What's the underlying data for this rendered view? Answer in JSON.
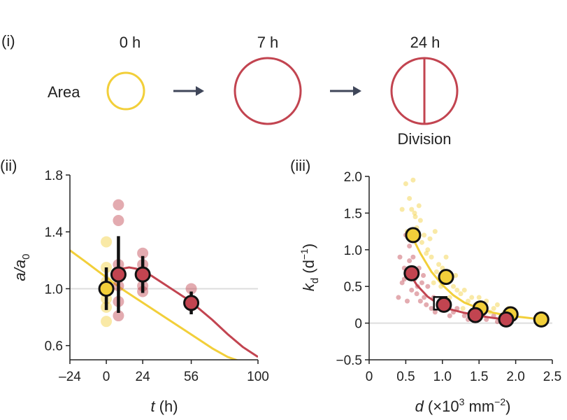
{
  "colors": {
    "yellow": "#F2CF3A",
    "red": "#C24450",
    "dark": "#111111",
    "arrow": "#3F4659",
    "grid": "#DDDDDD"
  },
  "panel_i": {
    "label": "(i)",
    "row_label": "Area",
    "times": [
      "0 h",
      "7 h",
      "24 h"
    ],
    "division_label": "Division"
  },
  "chart_data": [
    {
      "id": "ii",
      "panel_label": "(ii)",
      "type": "scatter",
      "xlabel_var": "t",
      "xlabel_unit": " (h)",
      "ylabel_var": "a/a",
      "ylabel_sub": "0",
      "xlim": [
        -24,
        100
      ],
      "ylim": [
        0.5,
        1.8
      ],
      "xticks": [
        -24,
        0,
        24,
        56,
        100
      ],
      "xtick_labels": [
        "–24",
        "0",
        "24",
        "56",
        "100"
      ],
      "yticks": [
        0.6,
        1.0,
        1.4,
        1.8
      ],
      "ytick_labels": [
        "0.6",
        "1.0",
        "1.4",
        "1.8"
      ],
      "reference_line": 1.0,
      "series": [
        {
          "name": "yellow-fit",
          "kind": "line",
          "color": "yellow",
          "x": [
            -24,
            -15,
            -5,
            0,
            5,
            10,
            20,
            30,
            40,
            50,
            60,
            70,
            80,
            88
          ],
          "y": [
            1.27,
            1.2,
            1.12,
            1.08,
            1.04,
            1.0,
            0.93,
            0.86,
            0.79,
            0.72,
            0.65,
            0.58,
            0.52,
            0.49
          ]
        },
        {
          "name": "red-fit",
          "kind": "line",
          "color": "red",
          "x": [
            7,
            10,
            15,
            20,
            24,
            30,
            40,
            50,
            56,
            60,
            70,
            80,
            90,
            100
          ],
          "y": [
            1.12,
            1.14,
            1.15,
            1.14,
            1.12,
            1.09,
            1.02,
            0.95,
            0.91,
            0.87,
            0.78,
            0.68,
            0.59,
            0.52
          ]
        },
        {
          "name": "yellow-raw",
          "kind": "raw",
          "color": "yellow",
          "x": [
            0,
            0,
            0,
            0,
            0,
            0
          ],
          "y": [
            1.33,
            1.15,
            1.05,
            0.93,
            0.87,
            0.77
          ]
        },
        {
          "name": "red-raw",
          "kind": "raw",
          "color": "red",
          "x": [
            8,
            8,
            8,
            8,
            8,
            8,
            24,
            24,
            24,
            24,
            56,
            56
          ],
          "y": [
            1.59,
            1.48,
            1.17,
            1.02,
            0.91,
            0.81,
            1.25,
            1.17,
            1.02,
            0.98,
            1.0,
            0.88
          ]
        },
        {
          "name": "yellow-mean",
          "kind": "mean",
          "color": "yellow",
          "x": [
            0
          ],
          "y": [
            1.0
          ],
          "err": [
            0.15
          ]
        },
        {
          "name": "red-mean",
          "kind": "mean",
          "color": "red",
          "x": [
            8,
            24,
            56
          ],
          "y": [
            1.1,
            1.1,
            0.9
          ],
          "err": [
            0.27,
            0.13,
            0.08
          ]
        }
      ]
    },
    {
      "id": "iii",
      "panel_label": "(iii)",
      "type": "scatter",
      "xlabel_var": "d",
      "xlabel_unit": " (×10",
      "xlabel_exp": "3",
      "xlabel_unit2": " mm",
      "xlabel_exp2": "−2",
      "xlabel_close": ")",
      "ylabel_var": "k",
      "ylabel_sub": "d",
      "ylabel_unit": " (d",
      "ylabel_exp": "−1",
      "ylabel_close": ")",
      "xlim": [
        0,
        2.5
      ],
      "ylim": [
        -0.5,
        2.0
      ],
      "xticks": [
        0,
        0.5,
        1.0,
        1.5,
        2.0,
        2.5
      ],
      "xtick_labels": [
        "0",
        "0.5",
        "1.0",
        "1.5",
        "2.0",
        "2.5"
      ],
      "yticks": [
        -0.5,
        0,
        0.5,
        1.0,
        1.5,
        2.0
      ],
      "ytick_labels": [
        "−0.5",
        "0",
        "0.5",
        "1.0",
        "1.5",
        "2.0"
      ],
      "reference_line": 0,
      "series": [
        {
          "name": "yellow-fit",
          "kind": "line",
          "color": "yellow",
          "x": [
            0.55,
            0.7,
            0.85,
            1.0,
            1.15,
            1.3,
            1.5,
            1.7,
            1.9,
            2.1,
            2.35
          ],
          "y": [
            1.25,
            0.95,
            0.7,
            0.52,
            0.38,
            0.28,
            0.2,
            0.14,
            0.1,
            0.08,
            0.05
          ]
        },
        {
          "name": "red-fit",
          "kind": "line",
          "color": "red",
          "x": [
            0.55,
            0.65,
            0.8,
            0.95,
            1.1,
            1.3,
            1.5,
            1.7,
            1.87
          ],
          "y": [
            0.68,
            0.52,
            0.36,
            0.26,
            0.19,
            0.14,
            0.1,
            0.07,
            0.05
          ]
        },
        {
          "name": "yellow-cloud",
          "kind": "cloud",
          "color": "yellow",
          "x": [
            0.45,
            0.5,
            0.55,
            0.6,
            0.62,
            0.65,
            0.7,
            0.72,
            0.75,
            0.8,
            0.85,
            0.9,
            0.92,
            0.95,
            1.0,
            1.05,
            1.1,
            1.1,
            1.15,
            1.2,
            1.25,
            1.3,
            1.35,
            1.4,
            1.45,
            1.5,
            1.55,
            1.6,
            1.65,
            1.7,
            1.75,
            1.8,
            1.85,
            1.9,
            1.95,
            2.0,
            0.58,
            0.68,
            0.78,
            0.88,
            0.98,
            1.08,
            1.18,
            1.28,
            0.52,
            0.63,
            0.83,
            1.02
          ],
          "y": [
            1.55,
            1.9,
            1.7,
            1.95,
            1.5,
            1.3,
            1.4,
            1.1,
            1.2,
            1.0,
            0.9,
            1.25,
            0.7,
            0.8,
            0.75,
            0.9,
            0.6,
            0.35,
            0.5,
            0.45,
            0.4,
            0.45,
            0.3,
            0.35,
            0.25,
            0.35,
            0.2,
            0.3,
            0.15,
            0.2,
            0.25,
            0.1,
            0.15,
            0.2,
            0.1,
            0.15,
            1.55,
            1.6,
            0.95,
            0.55,
            0.5,
            0.3,
            0.65,
            0.2,
            1.25,
            1.45,
            1.15,
            0.55
          ]
        },
        {
          "name": "red-cloud",
          "kind": "cloud",
          "color": "red",
          "x": [
            0.4,
            0.42,
            0.45,
            0.48,
            0.5,
            0.52,
            0.55,
            0.58,
            0.6,
            0.62,
            0.65,
            0.68,
            0.7,
            0.72,
            0.75,
            0.78,
            0.8,
            0.85,
            0.88,
            0.9,
            0.95,
            1.0,
            1.05,
            1.1,
            1.15,
            1.2,
            1.3,
            1.35,
            1.4,
            1.5,
            1.55,
            1.6,
            1.7,
            1.75,
            1.8,
            1.9,
            0.48,
            0.55,
            0.66,
            0.74
          ],
          "y": [
            0.35,
            0.9,
            0.55,
            0.6,
            1.2,
            0.3,
            0.85,
            0.45,
            0.9,
            0.6,
            0.4,
            0.75,
            0.3,
            0.55,
            0.35,
            0.25,
            0.5,
            0.2,
            0.35,
            0.15,
            0.3,
            0.2,
            0.25,
            0.1,
            0.15,
            0.2,
            0.1,
            0.05,
            0.15,
            0.08,
            0.12,
            0.05,
            0.1,
            0.02,
            0.08,
            0.05,
            0.75,
            1.05,
            0.5,
            0.65
          ]
        },
        {
          "name": "square-marker",
          "kind": "square",
          "color": "white",
          "x": [
            0.97
          ],
          "y": [
            0.27
          ]
        },
        {
          "name": "yellow-bins",
          "kind": "mean",
          "color": "yellow",
          "x": [
            0.6,
            1.05,
            1.52,
            1.93,
            2.35
          ],
          "y": [
            1.2,
            0.63,
            0.2,
            0.12,
            0.05
          ]
        },
        {
          "name": "red-bins",
          "kind": "mean",
          "color": "red",
          "x": [
            0.58,
            1.02,
            1.45,
            1.87
          ],
          "y": [
            0.68,
            0.25,
            0.11,
            0.05
          ]
        }
      ]
    }
  ]
}
